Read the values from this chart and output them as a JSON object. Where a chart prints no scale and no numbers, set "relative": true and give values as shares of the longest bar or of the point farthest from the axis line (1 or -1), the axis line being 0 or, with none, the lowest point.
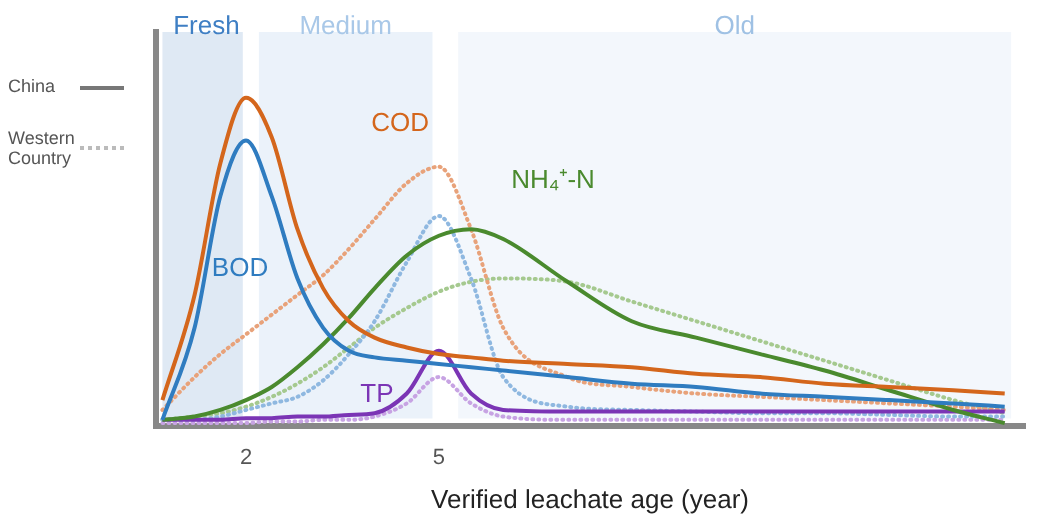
{
  "chart_data": {
    "type": "line",
    "relative": true,
    "xlabel": "Verified leachate age (year)",
    "xlim": [
      0.6,
      14.1
    ],
    "xticks": [
      2,
      5
    ],
    "marker": "none",
    "legend": false,
    "grid": false,
    "x": [
      0.7,
      1.2,
      1.6,
      2.0,
      2.4,
      2.8,
      3.2,
      3.6,
      4.0,
      4.5,
      5.0,
      5.5,
      6.0,
      7,
      8,
      9,
      10,
      11,
      12,
      13,
      13.8
    ],
    "series": [
      {
        "name": "COD",
        "color": "#d4661c",
        "line_style": "solid",
        "values": [
          0.08,
          0.4,
          0.8,
          1.0,
          0.88,
          0.6,
          0.42,
          0.32,
          0.27,
          0.24,
          0.22,
          0.21,
          0.2,
          0.19,
          0.18,
          0.16,
          0.15,
          0.13,
          0.12,
          0.11,
          0.1
        ]
      },
      {
        "name": "BOD",
        "color": "#2f7cc0",
        "line_style": "solid",
        "values": [
          0.02,
          0.3,
          0.7,
          0.87,
          0.7,
          0.45,
          0.3,
          0.23,
          0.21,
          0.2,
          0.19,
          0.18,
          0.17,
          0.15,
          0.13,
          0.12,
          0.1,
          0.09,
          0.08,
          0.07,
          0.06
        ]
      },
      {
        "name": "NH₄⁺-N",
        "color": "#4a8a2e",
        "line_style": "solid",
        "values": [
          0.02,
          0.03,
          0.05,
          0.08,
          0.12,
          0.18,
          0.25,
          0.33,
          0.42,
          0.52,
          0.58,
          0.6,
          0.57,
          0.44,
          0.32,
          0.27,
          0.22,
          0.17,
          0.11,
          0.05,
          0.01
        ]
      },
      {
        "name": "TP",
        "color": "#7b35b5",
        "line_style": "solid",
        "values": [
          0.02,
          0.02,
          0.02,
          0.025,
          0.025,
          0.03,
          0.03,
          0.035,
          0.04,
          0.1,
          0.23,
          0.1,
          0.05,
          0.045,
          0.045,
          0.045,
          0.045,
          0.045,
          0.045,
          0.045,
          0.045
        ]
      },
      {
        "color": "#e8a27a",
        "line_style": "dotted",
        "values": [
          0.05,
          0.15,
          0.22,
          0.28,
          0.34,
          0.4,
          0.46,
          0.54,
          0.63,
          0.74,
          0.79,
          0.6,
          0.3,
          0.15,
          0.12,
          0.1,
          0.09,
          0.08,
          0.07,
          0.06,
          0.05
        ]
      },
      {
        "color": "#8fb8e0",
        "line_style": "dotted",
        "values": [
          0.02,
          0.02,
          0.03,
          0.05,
          0.07,
          0.09,
          0.14,
          0.22,
          0.32,
          0.5,
          0.64,
          0.45,
          0.15,
          0.06,
          0.05,
          0.045,
          0.04,
          0.04,
          0.035,
          0.03,
          0.03
        ]
      },
      {
        "color": "#a5c98f",
        "line_style": "dotted",
        "values": [
          0.02,
          0.03,
          0.04,
          0.06,
          0.09,
          0.13,
          0.18,
          0.24,
          0.3,
          0.36,
          0.41,
          0.44,
          0.45,
          0.44,
          0.38,
          0.32,
          0.26,
          0.2,
          0.14,
          0.08,
          0.04
        ]
      },
      {
        "color": "#c7a3e3",
        "line_style": "dotted",
        "values": [
          0.01,
          0.01,
          0.01,
          0.01,
          0.015,
          0.015,
          0.02,
          0.02,
          0.03,
          0.07,
          0.15,
          0.07,
          0.03,
          0.02,
          0.02,
          0.02,
          0.02,
          0.02,
          0.02,
          0.02,
          0.02
        ]
      }
    ],
    "bands": [
      {
        "axis": "x",
        "from": 0.7,
        "to": 1.95,
        "label": "Fresh",
        "color": "#dfe9f4"
      },
      {
        "axis": "x",
        "from": 2.2,
        "to": 4.9,
        "label": "Medium",
        "color": "#ebf2fa"
      },
      {
        "axis": "x",
        "from": 5.3,
        "to": 13.9,
        "label": "Old",
        "color": "#f3f7fc"
      }
    ],
    "annotations": [
      "China",
      "Western Country"
    ]
  }
}
